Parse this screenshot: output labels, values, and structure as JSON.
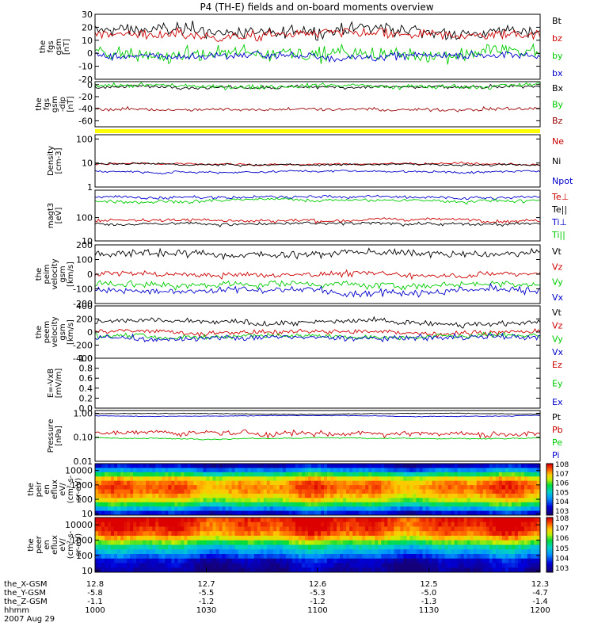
{
  "title": "P4 (TH-E) fields and on-board moments overview",
  "chart_data": [
    {
      "type": "line",
      "id": "fgs",
      "ylabel": [
        "the",
        "fgs",
        "gsm",
        "[nT]"
      ],
      "yscale": "linear",
      "ylim": [
        -20,
        30
      ],
      "yticks": [
        -20,
        -10,
        0,
        10,
        20,
        30
      ],
      "yticklabels": [
        "-20",
        "-10",
        "0",
        "10",
        "20",
        "30"
      ],
      "series": [
        {
          "name": "Bt",
          "color": "#000000",
          "mean": 17,
          "noise": 5
        },
        {
          "name": "bz",
          "color": "#cc0000",
          "mean": 14,
          "noise": 4
        },
        {
          "name": "by",
          "color": "#00cc00",
          "mean": 0,
          "noise": 6
        },
        {
          "name": "bx",
          "color": "#0000cc",
          "mean": -2,
          "noise": 3
        }
      ]
    },
    {
      "type": "line",
      "id": "fgs_dip",
      "ylabel": [
        "the",
        "fgs",
        "gsm",
        "-dip",
        "[nT]"
      ],
      "yscale": "linear",
      "ylim": [
        -70,
        5
      ],
      "yticks": [
        -60,
        -40,
        -20,
        0
      ],
      "yticklabels": [
        "-60",
        "-40",
        "-20",
        "0"
      ],
      "series": [
        {
          "name": "Bx",
          "color": "#000000",
          "mean": -4,
          "noise": 3
        },
        {
          "name": "By",
          "color": "#00cc00",
          "mean": -2,
          "noise": 4
        },
        {
          "name": "Bz",
          "color": "#990000",
          "mean": -41,
          "noise": 3
        }
      ]
    },
    {
      "type": "line",
      "id": "density",
      "ylabel": [
        "Density",
        "[cm-3]"
      ],
      "yscale": "log",
      "ylim": [
        1,
        150
      ],
      "yticks": [
        1,
        10,
        100
      ],
      "yticklabels": [
        "1",
        "10",
        "100"
      ],
      "series": [
        {
          "name": "Ne",
          "color": "#cc0000",
          "mean": 9,
          "noise": 0.1
        },
        {
          "name": "Ni",
          "color": "#000000",
          "mean": 8.5,
          "noise": 0.1
        },
        {
          "name": "Npot",
          "color": "#0000cc",
          "mean": 4.5,
          "noise": 0.1
        }
      ]
    },
    {
      "type": "line",
      "id": "temperature",
      "ylabel": [
        "magt3",
        "[eV]"
      ],
      "yscale": "log",
      "ylim": [
        10,
        1500
      ],
      "yticks": [
        10,
        100
      ],
      "yticklabels": [
        "10",
        "100"
      ],
      "series": [
        {
          "name": "Te⊥",
          "color": "#cc0000",
          "mean": 80,
          "noise": 0.15
        },
        {
          "name": "Te||",
          "color": "#000000",
          "mean": 55,
          "noise": 0.15
        },
        {
          "name": "Ti⊥",
          "color": "#0000cc",
          "mean": 750,
          "noise": 0.15
        },
        {
          "name": "Ti||",
          "color": "#00cc00",
          "mean": 550,
          "noise": 0.15
        }
      ]
    },
    {
      "type": "line",
      "id": "peim_velocity",
      "ylabel": [
        "the",
        "peim",
        "velocity",
        "gsm",
        "[km/s]"
      ],
      "yscale": "linear",
      "ylim": [
        -200,
        200
      ],
      "yticks": [
        -200,
        -100,
        0,
        100,
        200
      ],
      "yticklabels": [
        "-200",
        "-100",
        "0",
        "100",
        "200"
      ],
      "series": [
        {
          "name": "Vt",
          "color": "#000000",
          "mean": 140,
          "noise": 25
        },
        {
          "name": "Vz",
          "color": "#cc0000",
          "mean": 0,
          "noise": 20
        },
        {
          "name": "Vy",
          "color": "#00cc00",
          "mean": -70,
          "noise": 25
        },
        {
          "name": "Vx",
          "color": "#0000cc",
          "mean": -110,
          "noise": 25
        }
      ]
    },
    {
      "type": "line",
      "id": "peem_velocity",
      "ylabel": [
        "the",
        "peem",
        "velocity",
        "gsm",
        "[km/s]"
      ],
      "yscale": "linear",
      "ylim": [
        -400,
        400
      ],
      "yticks": [
        -400,
        -200,
        0,
        200,
        400
      ],
      "yticklabels": [
        "-400",
        "-200",
        "0",
        "200",
        "400"
      ],
      "series": [
        {
          "name": "Vt",
          "color": "#000000",
          "mean": 150,
          "noise": 45
        },
        {
          "name": "Vz",
          "color": "#cc0000",
          "mean": 0,
          "noise": 40
        },
        {
          "name": "Vy",
          "color": "#00cc00",
          "mean": -60,
          "noise": 40
        },
        {
          "name": "Vx",
          "color": "#0000cc",
          "mean": -90,
          "noise": 45
        }
      ]
    },
    {
      "type": "line",
      "id": "efield",
      "ylabel": [
        "E=-VxB",
        "[mV/m]"
      ],
      "yscale": "linear",
      "ylim": [
        0,
        1
      ],
      "yticks": [
        0,
        0.2,
        0.4,
        0.6,
        0.8,
        1.0
      ],
      "yticklabels": [
        "0.0",
        "0.2",
        "0.4",
        "0.6",
        "0.8",
        "1.0"
      ],
      "series": [
        {
          "name": "Ez",
          "color": "#cc0000",
          "mean": null,
          "noise": 0
        },
        {
          "name": "Ey",
          "color": "#00cc00",
          "mean": null,
          "noise": 0
        },
        {
          "name": "Ex",
          "color": "#0000cc",
          "mean": null,
          "noise": 0
        }
      ]
    },
    {
      "type": "line",
      "id": "pressure",
      "ylabel": [
        "Pressure",
        "[nPa]"
      ],
      "yscale": "log",
      "ylim": [
        0.01,
        1.3
      ],
      "yticks": [
        0.01,
        0.1,
        1
      ],
      "yticklabels": [
        "0.01",
        "0.10",
        "1.00"
      ],
      "series": [
        {
          "name": "Pt",
          "color": "#000000",
          "mean": 0.95,
          "noise": 0.03
        },
        {
          "name": "Pb",
          "color": "#cc0000",
          "mean": 0.15,
          "noise": 0.25
        },
        {
          "name": "Pe",
          "color": "#00cc00",
          "mean": 0.09,
          "noise": 0.05
        },
        {
          "name": "Pi",
          "color": "#0000cc",
          "mean": 0.78,
          "noise": 0.03
        }
      ]
    },
    {
      "type": "heatmap",
      "id": "peir_spectrogram",
      "ylabel": [
        "the",
        "peir",
        "en",
        "eflux",
        "eV/",
        "(cm^2-s-",
        "sr-eV)"
      ],
      "yscale": "log",
      "ylim": [
        8,
        30000
      ],
      "yticks": [
        10,
        100,
        1000,
        10000
      ],
      "yticklabels": [
        "10",
        "100",
        "1000",
        "10000"
      ],
      "colorbar": {
        "min_exp": 3,
        "max_exp": 8,
        "labels": [
          "10^3",
          "10^4",
          "10^5",
          "10^6",
          "10^7",
          "10^8"
        ]
      },
      "band_profile": [
        0.12,
        0.3,
        0.55,
        0.75,
        0.85,
        0.88,
        0.86,
        0.8,
        0.7,
        0.55,
        0.35,
        0.15
      ]
    },
    {
      "type": "heatmap",
      "id": "peer_spectrogram",
      "ylabel": [
        "the",
        "peer",
        "en",
        "eflux",
        "eV/",
        "(cm^2-s-",
        "sr-eV)"
      ],
      "yscale": "log",
      "ylim": [
        8,
        30000
      ],
      "yticks": [
        10,
        100,
        1000,
        10000
      ],
      "yticklabels": [
        "10",
        "100",
        "1000",
        "10000"
      ],
      "colorbar": {
        "min_exp": 3,
        "max_exp": 8,
        "labels": [
          "10^3",
          "10^4",
          "10^5",
          "10^6",
          "10^7",
          "10^8"
        ]
      },
      "band_profile": [
        0.97,
        0.95,
        0.93,
        0.88,
        0.78,
        0.62,
        0.45,
        0.35,
        0.25,
        0.12,
        0.08,
        0.05
      ]
    }
  ],
  "x_axis": {
    "row_labels": [
      "the_X-GSM",
      "the_Y-GSM",
      "the_Z-GSM",
      "hhmm",
      "2007 Aug 29"
    ],
    "ticks": [
      {
        "values": [
          "12.8",
          "-5.8",
          "-1.1",
          "1000"
        ]
      },
      {
        "values": [
          "12.7",
          "-5.5",
          "-1.2",
          "1030"
        ]
      },
      {
        "values": [
          "12.6",
          "-5.3",
          "-1.2",
          "1100"
        ]
      },
      {
        "values": [
          "12.5",
          "-5.0",
          "-1.3",
          "1130"
        ]
      },
      {
        "values": [
          "12.3",
          "-4.7",
          "-1.4",
          "1200"
        ]
      }
    ]
  },
  "colors": {
    "frame": "#000000",
    "yellow_bar": "#ffff00"
  }
}
